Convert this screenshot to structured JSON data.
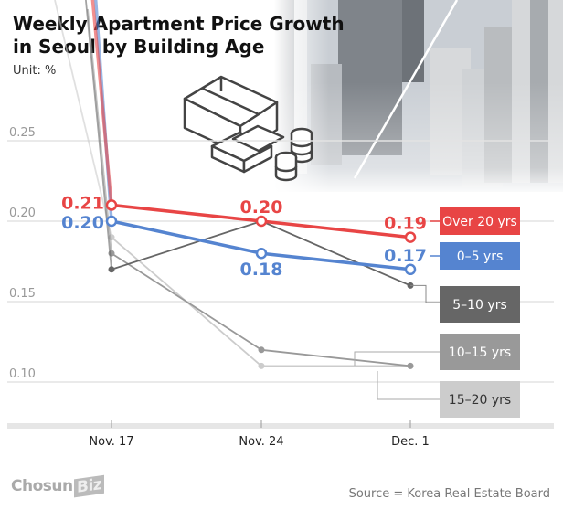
{
  "title_line1": "Weekly Apartment Price Growth",
  "title_line2": "in Seoul by Building Age",
  "unit": "Unit: %",
  "logo": {
    "part1": "Chosun",
    "part2": "Biz"
  },
  "source": "Source = Korea Real Estate Board",
  "chart_data": {
    "type": "line",
    "title": "Weekly Apartment Price Growth in Seoul by Building Age",
    "ylabel": "Unit: %",
    "x": [
      "Nov. 17",
      "Nov. 24",
      "Dec. 1"
    ],
    "yticks": [
      "0.25",
      "0.20",
      "0.15",
      "0.10"
    ],
    "ytick_values": [
      0.25,
      0.2,
      0.15,
      0.1
    ],
    "ylim": [
      0.075,
      0.28
    ],
    "grid": true,
    "series": [
      {
        "name": "15–20 yrs",
        "values": [
          0.19,
          0.11,
          0.11
        ],
        "color": "#cccccc",
        "label_text": "#333333",
        "labels": [
          "",
          "",
          ""
        ]
      },
      {
        "name": "10–15 yrs",
        "values": [
          0.18,
          0.12,
          0.11
        ],
        "color": "#999999",
        "label_text": "#ffffff",
        "labels": [
          "",
          "",
          ""
        ]
      },
      {
        "name": "5–10 yrs",
        "values": [
          0.17,
          0.2,
          0.16
        ],
        "color": "#666666",
        "label_text": "#ffffff",
        "labels": [
          "",
          "",
          ""
        ]
      },
      {
        "name": "0–5 yrs",
        "values": [
          0.2,
          0.18,
          0.17
        ],
        "color": "#5584d0",
        "label_text": "#ffffff",
        "labels": [
          "0.20",
          "0.18",
          "0.17"
        ]
      },
      {
        "name": "Over 20 yrs",
        "values": [
          0.21,
          0.2,
          0.19
        ],
        "color": "#e84545",
        "label_text": "#ffffff",
        "labels": [
          "0.21",
          "0.20",
          "0.19"
        ]
      }
    ]
  }
}
